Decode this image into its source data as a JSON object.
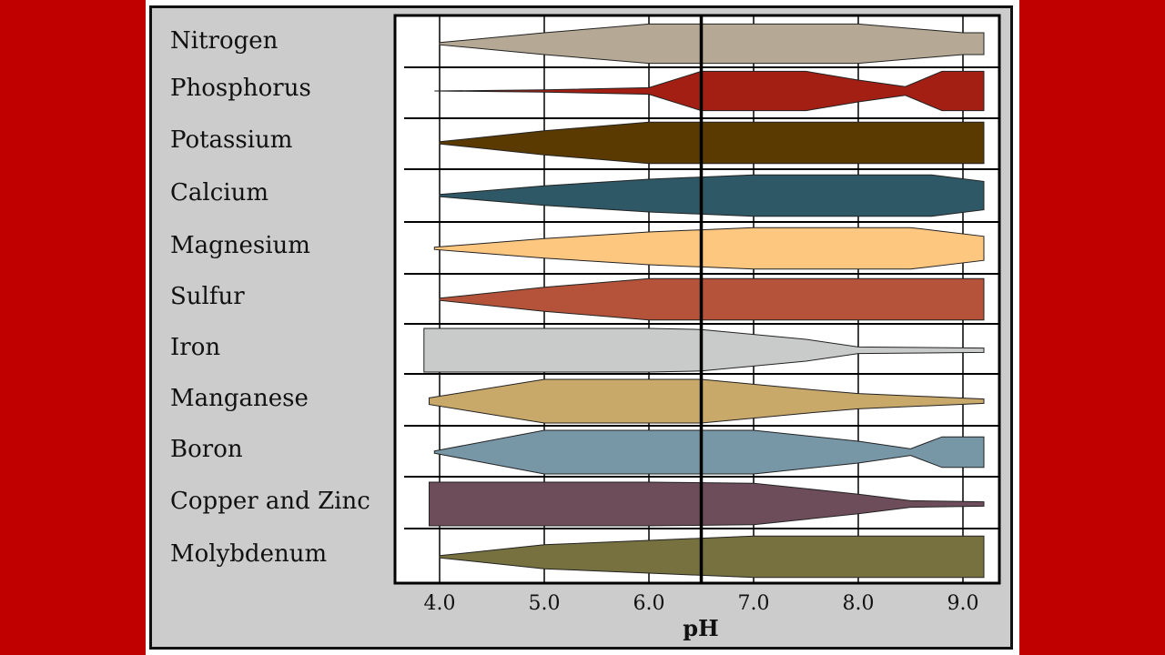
{
  "chart_data": {
    "type": "area",
    "title": "",
    "xlabel": "pH",
    "ylabel": "",
    "xlim": [
      3.55,
      9.35
    ],
    "x_ticks": [
      4.0,
      5.0,
      6.0,
      7.0,
      8.0,
      9.0
    ],
    "x_tick_labels": [
      "4.0",
      "5.0",
      "6.0",
      "7.0",
      "8.0",
      "9.0"
    ],
    "reference_line_ph": 6.5,
    "grid": true,
    "band_max_half_width": 1.0,
    "series": [
      {
        "name": "Nitrogen",
        "color": "#b5a895",
        "points": [
          [
            4.0,
            0.05
          ],
          [
            5.0,
            0.5
          ],
          [
            6.0,
            0.9
          ],
          [
            7.0,
            0.9
          ],
          [
            8.0,
            0.9
          ],
          [
            9.0,
            0.5
          ],
          [
            9.2,
            0.5
          ]
        ]
      },
      {
        "name": "Phosphorus",
        "color": "#a31f14",
        "points": [
          [
            3.95,
            0.0
          ],
          [
            5.0,
            0.05
          ],
          [
            6.0,
            0.15
          ],
          [
            6.5,
            0.9
          ],
          [
            7.5,
            0.9
          ],
          [
            8.0,
            0.5
          ],
          [
            8.45,
            0.2
          ],
          [
            8.8,
            0.9
          ],
          [
            9.2,
            0.9
          ]
        ]
      },
      {
        "name": "Potassium",
        "color": "#5a3a00",
        "points": [
          [
            4.0,
            0.05
          ],
          [
            5.0,
            0.55
          ],
          [
            6.0,
            0.95
          ],
          [
            7.0,
            0.95
          ],
          [
            8.0,
            0.95
          ],
          [
            9.2,
            0.95
          ]
        ]
      },
      {
        "name": "Calcium",
        "color": "#2f5866",
        "points": [
          [
            4.0,
            0.05
          ],
          [
            5.0,
            0.45
          ],
          [
            6.0,
            0.75
          ],
          [
            7.0,
            0.95
          ],
          [
            8.0,
            0.95
          ],
          [
            8.7,
            0.95
          ],
          [
            9.2,
            0.65
          ]
        ]
      },
      {
        "name": "Magnesium",
        "color": "#fec780",
        "points": [
          [
            3.95,
            0.05
          ],
          [
            5.0,
            0.45
          ],
          [
            6.0,
            0.75
          ],
          [
            7.0,
            0.95
          ],
          [
            8.0,
            0.95
          ],
          [
            8.5,
            0.95
          ],
          [
            9.2,
            0.55
          ]
        ]
      },
      {
        "name": "Sulfur",
        "color": "#b5533a",
        "points": [
          [
            4.0,
            0.05
          ],
          [
            5.0,
            0.55
          ],
          [
            6.0,
            0.95
          ],
          [
            7.0,
            0.95
          ],
          [
            8.0,
            0.95
          ],
          [
            9.2,
            0.95
          ]
        ]
      },
      {
        "name": "Iron",
        "color": "#c8cbca",
        "points": [
          [
            3.85,
            1.0
          ],
          [
            5.0,
            1.0
          ],
          [
            6.0,
            1.0
          ],
          [
            6.5,
            0.95
          ],
          [
            7.5,
            0.5
          ],
          [
            8.0,
            0.15
          ],
          [
            9.2,
            0.1
          ]
        ]
      },
      {
        "name": "Manganese",
        "color": "#c9a96a",
        "points": [
          [
            3.9,
            0.15
          ],
          [
            5.0,
            1.0
          ],
          [
            6.0,
            1.0
          ],
          [
            6.5,
            1.0
          ],
          [
            7.5,
            0.55
          ],
          [
            8.0,
            0.35
          ],
          [
            9.2,
            0.1
          ]
        ]
      },
      {
        "name": "Boron",
        "color": "#7797a7",
        "points": [
          [
            3.95,
            0.05
          ],
          [
            5.0,
            1.0
          ],
          [
            6.0,
            1.0
          ],
          [
            7.0,
            1.0
          ],
          [
            8.0,
            0.5
          ],
          [
            8.5,
            0.15
          ],
          [
            8.8,
            0.7
          ],
          [
            9.2,
            0.7
          ]
        ]
      },
      {
        "name": "Copper and Zinc",
        "color": "#6e4d5a",
        "points": [
          [
            3.9,
            1.0
          ],
          [
            5.0,
            1.0
          ],
          [
            6.0,
            1.0
          ],
          [
            7.0,
            0.95
          ],
          [
            8.0,
            0.45
          ],
          [
            8.5,
            0.15
          ],
          [
            9.2,
            0.1
          ]
        ]
      },
      {
        "name": "Molybdenum",
        "color": "#76713f",
        "points": [
          [
            4.0,
            0.05
          ],
          [
            5.0,
            0.55
          ],
          [
            6.0,
            0.75
          ],
          [
            7.0,
            0.95
          ],
          [
            8.0,
            0.95
          ],
          [
            9.2,
            0.95
          ]
        ]
      }
    ]
  }
}
